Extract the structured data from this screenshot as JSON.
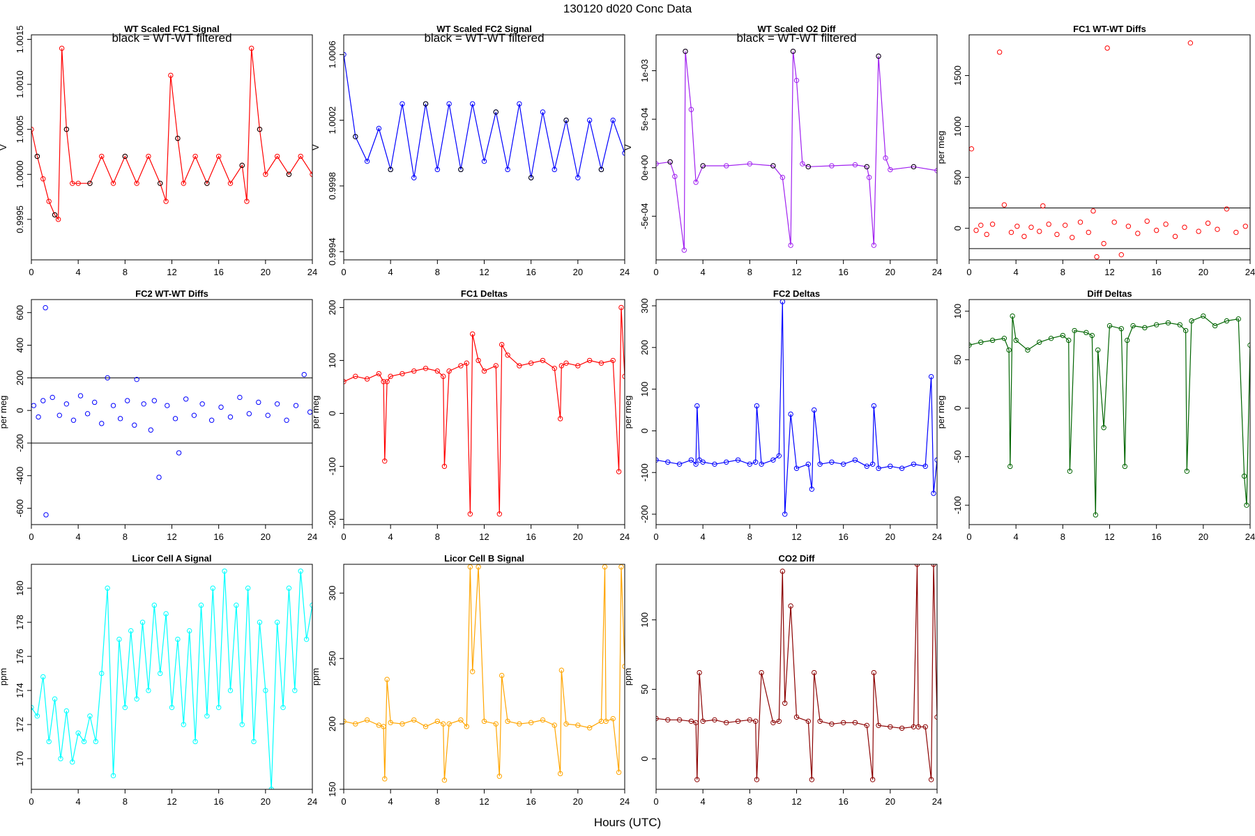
{
  "figure": {
    "title": "130120    d020    Conc Data",
    "xlabel": "Hours (UTC)"
  },
  "chart_data": [
    {
      "id": "p1",
      "type": "line",
      "title": "WT Scaled FC1 Signal",
      "annotation": "black = WT-WT filtered",
      "xlabel": "",
      "ylabel": "V",
      "color": "#ff0000",
      "xlim": [
        0,
        24
      ],
      "ylim": [
        0.99905,
        1.00155
      ],
      "xticks": [
        0,
        4,
        8,
        12,
        16,
        20,
        24
      ],
      "yticks": [
        0.9995,
        1.0,
        1.0005,
        1.001,
        1.0015
      ],
      "yticklabels": [
        "0.9995",
        "1.0000",
        "1.0005",
        "1.0010",
        "1.0015"
      ],
      "x": [
        0,
        0.5,
        1,
        1.5,
        2,
        2.3,
        2.6,
        3,
        3.5,
        4,
        5,
        6,
        7,
        8,
        9,
        10,
        11,
        11.5,
        11.9,
        12.5,
        13,
        14,
        15,
        16,
        17,
        18,
        18.4,
        18.8,
        19.5,
        20,
        21,
        22,
        23,
        24
      ],
      "values": [
        1.0005,
        1.0002,
        0.99995,
        0.9997,
        0.99955,
        0.9995,
        1.0014,
        1.0005,
        0.9999,
        0.9999,
        0.9999,
        1.0002,
        0.9999,
        1.0002,
        0.9999,
        1.0002,
        0.9999,
        0.9997,
        1.0011,
        1.0004,
        0.9999,
        1.0002,
        0.9999,
        1.0002,
        0.9999,
        1.0001,
        0.9997,
        1.0014,
        1.0005,
        1.0,
        1.0002,
        1.0,
        1.0002,
        1.0
      ],
      "filtered_color": "#000000"
    },
    {
      "id": "p2",
      "type": "line",
      "title": "WT Scaled FC2 Signal",
      "annotation": "black = WT-WT filtered",
      "xlabel": "",
      "ylabel": "V",
      "color": "#0000ff",
      "xlim": [
        0,
        24
      ],
      "ylim": [
        0.99935,
        1.00072
      ],
      "xticks": [
        0,
        4,
        8,
        12,
        16,
        20,
        24
      ],
      "yticks": [
        0.9994,
        0.9998,
        1.0002,
        1.0006
      ],
      "yticklabels": [
        "0.9994",
        "0.9998",
        "1.0002",
        "1.0006"
      ],
      "x": [
        0,
        1,
        2,
        3,
        4,
        5,
        6,
        7,
        8,
        9,
        10,
        11,
        12,
        13,
        14,
        15,
        16,
        17,
        18,
        19,
        20,
        21,
        22,
        23,
        24
      ],
      "values": [
        1.0006,
        1.0001,
        0.99995,
        1.00015,
        0.9999,
        1.0003,
        0.99985,
        1.0003,
        0.9999,
        1.0003,
        0.9999,
        1.0003,
        0.99995,
        1.00025,
        0.9999,
        1.0003,
        0.99985,
        1.00025,
        0.9999,
        1.0002,
        0.99985,
        1.0002,
        0.9999,
        1.0002,
        1.0
      ],
      "filtered_color": "#000000"
    },
    {
      "id": "p3",
      "type": "line",
      "title": "WT Scaled O2 Diff",
      "annotation": "black = WT-WT filtered",
      "xlabel": "",
      "ylabel": "V",
      "color": "#a020f0",
      "xlim": [
        0,
        24
      ],
      "ylim": [
        -0.00095,
        0.00137
      ],
      "xticks": [
        0,
        4,
        8,
        12,
        16,
        20,
        24
      ],
      "yticks": [
        -0.0005,
        0.0,
        0.0005,
        0.001
      ],
      "yticklabels": [
        "-5e-04",
        "0e+00",
        "5e-04",
        "1e-03"
      ],
      "x": [
        0,
        1.2,
        1.6,
        2.4,
        2.5,
        3,
        3.4,
        4,
        6,
        8,
        10,
        10.8,
        11.5,
        11.7,
        12,
        12.5,
        13,
        15,
        17,
        18,
        18.2,
        18.6,
        19,
        19.6,
        20,
        22,
        24
      ],
      "values": [
        4e-05,
        6e-05,
        -9e-05,
        -0.00085,
        0.0012,
        0.0006,
        -0.00015,
        2e-05,
        2e-05,
        4e-05,
        2e-05,
        -0.0001,
        -0.0008,
        0.0012,
        0.0009,
        4e-05,
        1e-05,
        2e-05,
        3e-05,
        1e-05,
        -0.0001,
        -0.0008,
        0.00115,
        0.0001,
        -2e-05,
        1e-05,
        -3e-05
      ],
      "filtered_color": "#000000"
    },
    {
      "id": "p4",
      "type": "scatter",
      "title": "FC1 WT-WT Diffs",
      "xlabel": "",
      "ylabel": "per meg",
      "color": "#ff0000",
      "xlim": [
        0,
        24
      ],
      "ylim": [
        -310,
        1900
      ],
      "xticks": [
        0,
        4,
        8,
        12,
        16,
        20,
        24
      ],
      "yticks": [
        0,
        500,
        1000,
        1500
      ],
      "yticklabels": [
        "0",
        "500",
        "1000",
        "1500"
      ],
      "hlines": [
        -200,
        200
      ],
      "x": [
        0.2,
        0.6,
        1.0,
        1.5,
        2.0,
        2.6,
        3.0,
        3.6,
        4.1,
        4.7,
        5.3,
        6.0,
        6.3,
        6.8,
        7.5,
        8.2,
        8.8,
        9.5,
        10.2,
        10.6,
        10.9,
        11.5,
        11.8,
        12.4,
        13.0,
        13.6,
        14.4,
        15.2,
        16.0,
        16.8,
        17.6,
        18.4,
        18.9,
        19.6,
        20.4,
        21.2,
        22.0,
        22.8,
        23.6
      ],
      "values": [
        780,
        -20,
        30,
        -60,
        40,
        1730,
        230,
        -40,
        20,
        -80,
        10,
        -30,
        220,
        40,
        -60,
        30,
        -90,
        60,
        -40,
        170,
        -280,
        -150,
        1770,
        60,
        -260,
        20,
        -50,
        70,
        -20,
        40,
        -80,
        10,
        1820,
        -30,
        50,
        -10,
        190,
        -40,
        20
      ]
    },
    {
      "id": "p5",
      "type": "scatter",
      "title": "FC2 WT-WT Diffs",
      "xlabel": "",
      "ylabel": "per meg",
      "color": "#0000ff",
      "xlim": [
        0,
        24
      ],
      "ylim": [
        -700,
        680
      ],
      "xticks": [
        0,
        4,
        8,
        12,
        16,
        20,
        24
      ],
      "yticks": [
        -600,
        -400,
        -200,
        0,
        200,
        400,
        600
      ],
      "yticklabels": [
        "-600",
        "-400",
        "-200",
        "0",
        "200",
        "400",
        "600"
      ],
      "hlines": [
        -200,
        200
      ],
      "x": [
        0.2,
        0.6,
        1.0,
        1.2,
        1.25,
        1.8,
        2.4,
        3.0,
        3.6,
        4.2,
        4.8,
        5.4,
        6.0,
        6.5,
        7.0,
        7.6,
        8.2,
        8.8,
        9.0,
        9.6,
        10.2,
        10.5,
        10.9,
        11.6,
        12.3,
        12.6,
        13.2,
        13.9,
        14.6,
        15.4,
        16.2,
        17.0,
        17.8,
        18.6,
        19.4,
        20.2,
        21.0,
        21.8,
        22.6,
        23.3,
        23.8
      ],
      "values": [
        30,
        -40,
        60,
        630,
        -640,
        80,
        -30,
        40,
        -60,
        90,
        -20,
        50,
        -80,
        200,
        30,
        -50,
        60,
        -90,
        190,
        40,
        -120,
        60,
        -410,
        30,
        -50,
        -260,
        70,
        -30,
        40,
        -60,
        20,
        -40,
        80,
        -20,
        50,
        -30,
        40,
        -60,
        30,
        220,
        -10
      ]
    },
    {
      "id": "p6",
      "type": "line",
      "title": "FC1 Deltas",
      "xlabel": "",
      "ylabel": "per meg",
      "color": "#ff0000",
      "xlim": [
        0,
        24
      ],
      "ylim": [
        -210,
        215
      ],
      "xticks": [
        0,
        4,
        8,
        12,
        16,
        20,
        24
      ],
      "yticks": [
        -200,
        -100,
        0,
        100,
        200
      ],
      "yticklabels": [
        "-200",
        "-100",
        "0",
        "100",
        "200"
      ],
      "x": [
        0,
        1,
        2,
        3,
        3.4,
        3.5,
        3.7,
        4,
        5,
        6,
        7,
        8,
        8.5,
        8.6,
        9,
        10,
        10.5,
        10.8,
        11,
        11.5,
        12,
        13,
        13.3,
        13.5,
        14,
        15,
        16,
        17,
        18,
        18.5,
        18.6,
        19,
        20,
        21,
        22,
        23,
        23.5,
        23.7,
        24
      ],
      "values": [
        60,
        70,
        65,
        75,
        60,
        -90,
        60,
        70,
        75,
        80,
        85,
        80,
        70,
        -100,
        80,
        90,
        95,
        -190,
        150,
        100,
        80,
        90,
        -190,
        130,
        110,
        90,
        95,
        100,
        85,
        -10,
        90,
        95,
        90,
        100,
        95,
        100,
        -110,
        200,
        70
      ]
    },
    {
      "id": "p7",
      "type": "line",
      "title": "FC2 Deltas",
      "xlabel": "",
      "ylabel": "per meg",
      "color": "#0000ff",
      "xlim": [
        0,
        24
      ],
      "ylim": [
        -225,
        315
      ],
      "xticks": [
        0,
        4,
        8,
        12,
        16,
        20,
        24
      ],
      "yticks": [
        -200,
        -100,
        0,
        100,
        200,
        300
      ],
      "yticklabels": [
        "-200",
        "-100",
        "0",
        "100",
        "200",
        "300"
      ],
      "x": [
        0,
        1,
        2,
        3,
        3.4,
        3.5,
        3.7,
        4,
        5,
        6,
        7,
        8,
        8.5,
        8.6,
        9,
        10,
        10.5,
        10.8,
        11,
        11.5,
        12,
        13,
        13.3,
        13.5,
        14,
        15,
        16,
        17,
        18,
        18.5,
        18.6,
        19,
        20,
        21,
        22,
        23,
        23.5,
        23.7,
        24
      ],
      "values": [
        -70,
        -75,
        -80,
        -70,
        -80,
        60,
        -70,
        -75,
        -80,
        -75,
        -70,
        -80,
        -75,
        60,
        -80,
        -70,
        -60,
        310,
        -200,
        40,
        -90,
        -80,
        -140,
        50,
        -80,
        -75,
        -80,
        -70,
        -85,
        -80,
        60,
        -90,
        -85,
        -90,
        -80,
        -85,
        130,
        -150,
        -70
      ]
    },
    {
      "id": "p8",
      "type": "line",
      "title": "Diff Deltas",
      "xlabel": "",
      "ylabel": "per meg",
      "color": "#006400",
      "xlim": [
        0,
        24
      ],
      "ylim": [
        -120,
        112
      ],
      "xticks": [
        0,
        4,
        8,
        12,
        16,
        20,
        24
      ],
      "yticks": [
        -100,
        -50,
        0,
        50,
        100
      ],
      "yticklabels": [
        "-100",
        "-50",
        "0",
        "50",
        "100"
      ],
      "x": [
        0,
        1,
        2,
        3,
        3.4,
        3.5,
        3.7,
        4,
        5,
        6,
        7,
        8,
        8.5,
        8.6,
        9,
        10,
        10.5,
        10.8,
        11,
        11.5,
        12,
        13,
        13.3,
        13.5,
        14,
        15,
        16,
        17,
        18,
        18.5,
        18.6,
        19,
        20,
        21,
        22,
        23,
        23.5,
        23.7,
        24
      ],
      "values": [
        65,
        68,
        70,
        72,
        60,
        -60,
        95,
        70,
        60,
        68,
        72,
        75,
        70,
        -65,
        80,
        78,
        75,
        -110,
        60,
        -20,
        85,
        82,
        -60,
        70,
        85,
        83,
        86,
        88,
        86,
        80,
        -65,
        90,
        95,
        85,
        90,
        92,
        -70,
        -100,
        65
      ]
    },
    {
      "id": "p9",
      "type": "line",
      "title": "Licor Cell A Signal",
      "xlabel": "",
      "ylabel": "ppm",
      "color": "#00ffff",
      "xlim": [
        0,
        24
      ],
      "ylim": [
        168.2,
        181.4
      ],
      "xticks": [
        0,
        4,
        8,
        12,
        16,
        20,
        24
      ],
      "yticks": [
        170,
        172,
        174,
        176,
        178,
        180
      ],
      "yticklabels": [
        "170",
        "172",
        "174",
        "176",
        "178",
        "180"
      ],
      "x": [
        0,
        0.5,
        1,
        1.5,
        2,
        2.5,
        3,
        3.5,
        4,
        4.5,
        5,
        5.5,
        6,
        6.5,
        7,
        7.5,
        8,
        8.5,
        9,
        9.5,
        10,
        10.5,
        11,
        11.5,
        12,
        12.5,
        13,
        13.5,
        14,
        14.5,
        15,
        15.5,
        16,
        16.5,
        17,
        17.5,
        18,
        18.5,
        19,
        19.5,
        20,
        20.5,
        21,
        21.5,
        22,
        22.5,
        23,
        23.5,
        24
      ],
      "values": [
        173,
        172.5,
        174.8,
        171,
        173.5,
        170,
        172.8,
        169.8,
        171.5,
        171,
        172.5,
        171,
        175,
        180,
        169,
        177,
        173,
        177.5,
        173.5,
        178,
        174,
        179,
        175,
        178.5,
        173,
        177,
        172,
        177.5,
        171,
        179,
        172.5,
        180,
        173,
        181,
        174,
        179,
        172,
        180,
        171,
        178,
        174,
        168.2,
        178,
        173,
        180,
        174,
        181,
        177,
        179
      ]
    },
    {
      "id": "p10",
      "type": "line",
      "title": "Licor Cell B Signal",
      "xlabel": "",
      "ylabel": "ppm",
      "color": "#ffa500",
      "xlim": [
        0,
        24
      ],
      "ylim": [
        150,
        322
      ],
      "xticks": [
        0,
        4,
        8,
        12,
        16,
        20,
        24
      ],
      "yticks": [
        150,
        200,
        250,
        300
      ],
      "yticklabels": [
        "150",
        "200",
        "250",
        "300"
      ],
      "x": [
        0,
        1,
        2,
        3,
        3.4,
        3.5,
        3.7,
        4,
        5,
        6,
        7,
        8,
        8.5,
        8.6,
        9,
        10,
        10.5,
        10.8,
        11,
        11.5,
        12,
        13,
        13.3,
        13.5,
        14,
        15,
        16,
        17,
        18,
        18.5,
        18.6,
        19,
        20,
        21,
        22,
        22.3,
        22.4,
        23,
        23.5,
        23.7,
        24
      ],
      "values": [
        202,
        200,
        203,
        199,
        198,
        158,
        234,
        201,
        200,
        203,
        198,
        202,
        200,
        157,
        200,
        203,
        198,
        320,
        240,
        320,
        202,
        200,
        160,
        237,
        202,
        200,
        201,
        203,
        199,
        162,
        241,
        200,
        199,
        197,
        202,
        320,
        202,
        204,
        163,
        320,
        244
      ]
    },
    {
      "id": "p11",
      "type": "line",
      "title": "CO2 Diff",
      "xlabel": "",
      "ylabel": "ppm",
      "color": "#8b0000",
      "xlim": [
        0,
        24
      ],
      "ylim": [
        -22,
        140
      ],
      "xticks": [
        0,
        4,
        8,
        12,
        16,
        20,
        24
      ],
      "yticks": [
        0,
        50,
        100
      ],
      "yticklabels": [
        "0",
        "50",
        "100"
      ],
      "x": [
        0,
        1,
        2,
        3,
        3.4,
        3.5,
        3.7,
        4,
        5,
        6,
        7,
        8,
        8.5,
        8.6,
        9,
        10,
        10.5,
        10.8,
        11,
        11.5,
        12,
        13,
        13.3,
        13.5,
        14,
        15,
        16,
        17,
        18,
        18.5,
        18.6,
        19,
        20,
        21,
        22,
        22.3,
        22.4,
        23,
        23.5,
        23.7,
        24
      ],
      "values": [
        29,
        28,
        28,
        27,
        26,
        -15,
        62,
        27,
        28,
        26,
        27,
        28,
        27,
        -15,
        62,
        26,
        27,
        135,
        40,
        110,
        30,
        27,
        -15,
        62,
        27,
        25,
        26,
        26,
        24,
        -15,
        62,
        24,
        23,
        22,
        23,
        140,
        23,
        23,
        -15,
        140,
        30
      ]
    }
  ]
}
